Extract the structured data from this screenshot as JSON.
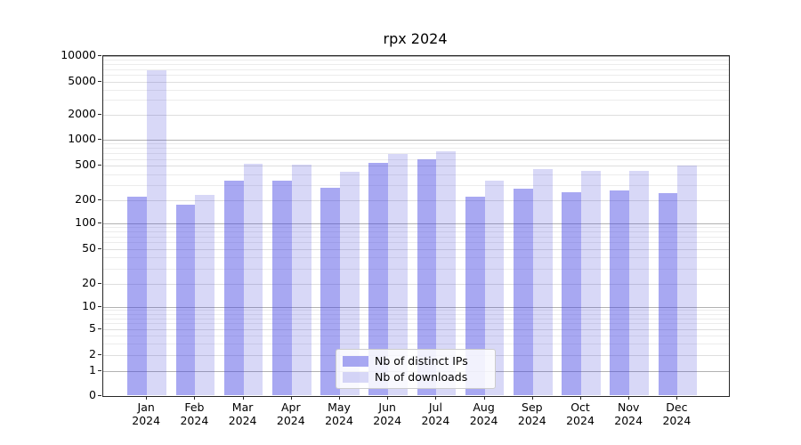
{
  "title": "rpx 2024",
  "chart_data": {
    "type": "bar",
    "title": "rpx 2024",
    "y_scale": "symlog",
    "grid": true,
    "legend_position": "lower center",
    "categories": [
      "Jan",
      "Feb",
      "Mar",
      "Apr",
      "May",
      "Jun",
      "Jul",
      "Aug",
      "Sep",
      "Oct",
      "Nov",
      "Dec"
    ],
    "category_year": "2024",
    "y_tick_labels": [
      "0",
      "1",
      "2",
      "5",
      "10",
      "20",
      "50",
      "100",
      "200",
      "500",
      "1000",
      "2000",
      "5000",
      "10000"
    ],
    "ylim": [
      0,
      10000
    ],
    "series": [
      {
        "name": "Nb of distinct IPs",
        "color": "rgba(66,66,226,0.46)",
        "color_hex": "#aaaaf0",
        "values": [
          222,
          176,
          340,
          333,
          278,
          540,
          592,
          221,
          275,
          249,
          261,
          243
        ]
      },
      {
        "name": "Nb of downloads",
        "color": "rgba(60,60,215,0.2)",
        "color_hex": "#d8d8f8",
        "values": [
          6800,
          230,
          530,
          515,
          425,
          690,
          738,
          335,
          455,
          440,
          436,
          507
        ]
      }
    ]
  }
}
